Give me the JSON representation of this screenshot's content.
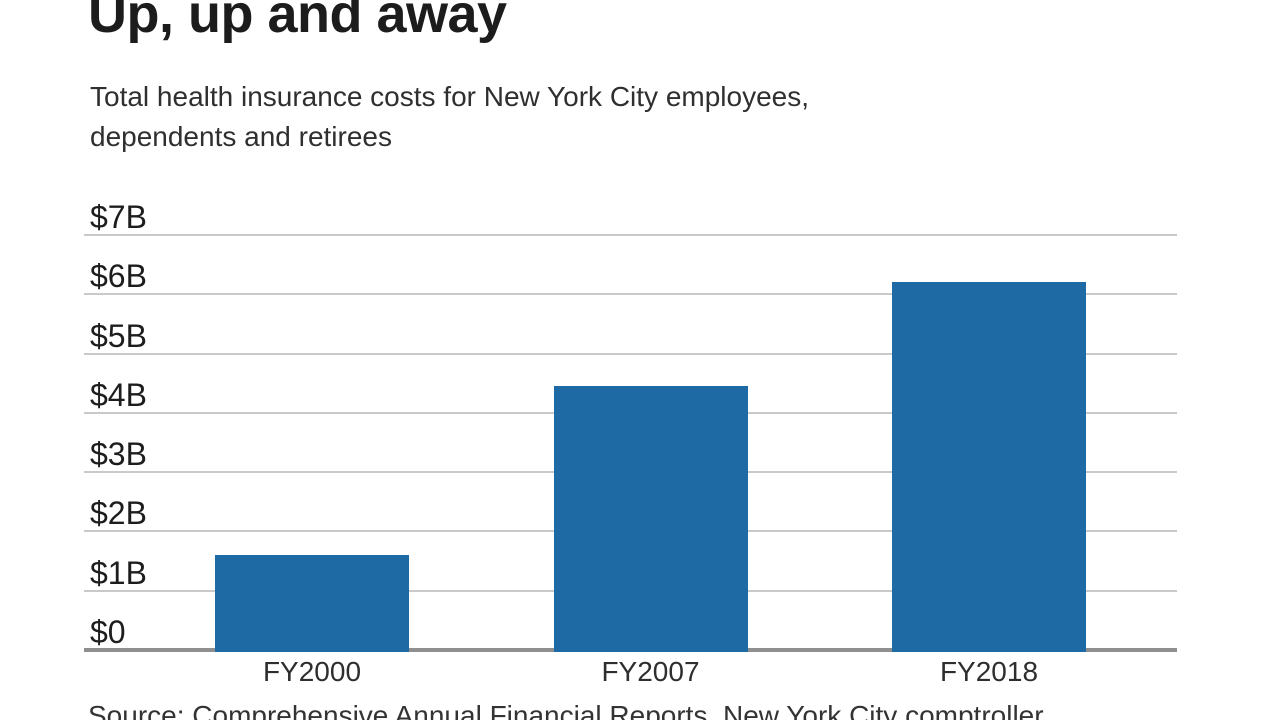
{
  "header": {
    "title": "Up, up and away",
    "subtitle_line1": "Total health insurance costs for New York City employees,",
    "subtitle_line2": "dependents and retirees"
  },
  "chart_data": {
    "type": "bar",
    "title": "Up, up and away",
    "subtitle": "Total health insurance costs for New York City employees, dependents and retirees",
    "categories": [
      "FY2000",
      "FY2007",
      "FY2018"
    ],
    "values": [
      1.6,
      4.45,
      6.2
    ],
    "unit": "USD billions",
    "xlabel": "",
    "ylabel": "",
    "ylim": [
      0,
      7
    ],
    "y_tick_interval": 1,
    "y_tick_labels": [
      "$0",
      "$1B",
      "$2B",
      "$3B",
      "$4B",
      "$5B",
      "$6B",
      "$7B"
    ],
    "grid": true,
    "legend": false,
    "bar_color": "#1e6aa4",
    "gridline_color": "#c9c9c9",
    "baseline_color": "#8f8f8f"
  },
  "footer": {
    "source": "Source: Comprehensive Annual Financial Reports, New York City comptroller"
  }
}
